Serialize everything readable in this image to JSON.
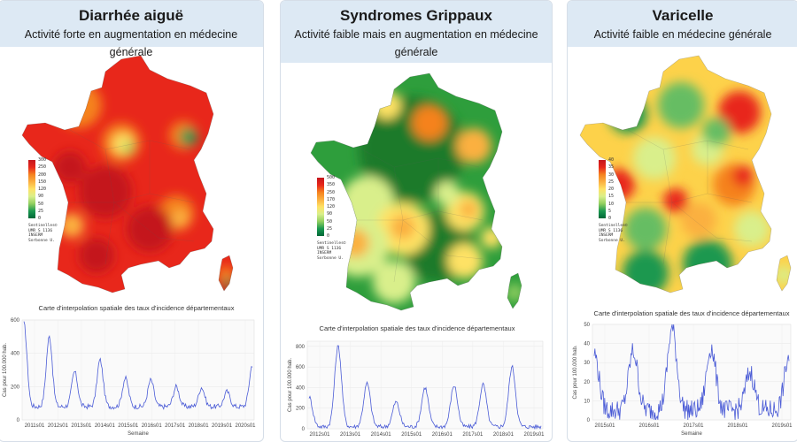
{
  "panels": [
    {
      "id": "diarrhee",
      "title": "Diarrhée aiguë",
      "subtitle": "Activité forte en augmentation en médecine générale",
      "legend": {
        "ticks": [
          "300",
          "250",
          "200",
          "150",
          "120",
          "90",
          "50",
          "25",
          "0"
        ],
        "gradient": [
          "#c4161c",
          "#e8271b",
          "#f5821f",
          "#fbb040",
          "#fee265",
          "#d9ef8b",
          "#91cf60",
          "#1a9850",
          "#006837"
        ]
      },
      "credit": "Sentinelles©\nUMR S 1136\nINSERM\nSorbonne U.",
      "map_palette": {
        "base": "#e8271b",
        "hot": "#c4161c",
        "warm": "#f5821f",
        "mid": "#fbb040",
        "low": "#fee265",
        "cool": "#91cf60",
        "cold": "#1a9850"
      },
      "chart_title": "Carte d'interpolation spatiale des taux d'incidence départementaux",
      "chart_data": {
        "type": "line",
        "x": [
          "2011s01",
          "2012s01",
          "2013s01",
          "2014s01",
          "2015s01",
          "2016s01",
          "2017s01",
          "2018s01",
          "2019s01",
          "2020s01"
        ],
        "y_ticks": [
          0,
          200,
          400,
          600
        ],
        "ylim": [
          0,
          600
        ],
        "ylabel": "Cas pour 100.000 hab.",
        "xlabel": "Semaine",
        "peaks": [
          580,
          500,
          290,
          360,
          250,
          240,
          200,
          195,
          170,
          330
        ],
        "baseline": 80,
        "color": "#4a5bd6"
      }
    },
    {
      "id": "grippe",
      "title": "Syndromes Grippaux",
      "subtitle": "Activité faible mais en augmentation en médecine générale",
      "legend": {
        "ticks": [
          "500",
          "350",
          "250",
          "170",
          "120",
          "90",
          "50",
          "25",
          "0"
        ],
        "gradient": [
          "#c4161c",
          "#e8271b",
          "#f5821f",
          "#fbb040",
          "#fee265",
          "#d9ef8b",
          "#91cf60",
          "#1a9850",
          "#006837"
        ]
      },
      "credit": "Sentinelles©\nUMR S 1136\nINSERM\nSorbonne U.",
      "map_palette": {
        "base": "#2e9e3c",
        "hot": "#f5821f",
        "warm": "#fbb040",
        "mid": "#fee265",
        "low": "#d9ef8b",
        "cool": "#91cf60",
        "cold": "#1a7a2c"
      },
      "chart_title": "Carte d'interpolation spatiale des taux d'incidence départementaux",
      "chart_data": {
        "type": "line",
        "x": [
          "2012s01",
          "2013s01",
          "2014s01",
          "2015s01",
          "2016s01",
          "2017s01",
          "2018s01",
          "2019s01"
        ],
        "y_ticks": [
          0,
          200,
          400,
          600,
          800
        ],
        "ylim": [
          0,
          850
        ],
        "ylabel": "Cas pour 100.000 hab.",
        "xlabel": "",
        "peaks": [
          310,
          800,
          440,
          260,
          400,
          420,
          430,
          600,
          20
        ],
        "baseline": 20,
        "color": "#4a5bd6"
      }
    },
    {
      "id": "varicelle",
      "title": "Varicelle",
      "subtitle": "Activité faible en médecine générale",
      "legend": {
        "ticks": [
          "40",
          "35",
          "30",
          "25",
          "20",
          "15",
          "10",
          "5",
          "0"
        ],
        "gradient": [
          "#c4161c",
          "#e8271b",
          "#f5821f",
          "#fbb040",
          "#fee265",
          "#d9ef8b",
          "#91cf60",
          "#1a9850",
          "#006837"
        ]
      },
      "credit": "Sentinelles©\nUMR S 1136\nINSERM\nSorbonne U.",
      "map_palette": {
        "base": "#fdd24a",
        "hot": "#e8271b",
        "warm": "#f5821f",
        "mid": "#fbb040",
        "low": "#d9ef8b",
        "cool": "#66bd63",
        "cold": "#1a9850"
      },
      "chart_title": "Carte d'interpolation spatiale des taux d'incidence départementaux",
      "chart_data": {
        "type": "line",
        "x": [
          "2015s01",
          "2016s01",
          "2017s01",
          "2018s01",
          "2019s01"
        ],
        "y_ticks": [
          0,
          10,
          20,
          30,
          40,
          50
        ],
        "ylim": [
          0,
          50
        ],
        "ylabel": "Cas pour 100.000 hab.",
        "xlabel": "Semaine",
        "peaks": [
          35,
          36,
          48,
          38,
          25,
          33
        ],
        "baseline": 5,
        "color": "#4a5bd6"
      }
    }
  ]
}
